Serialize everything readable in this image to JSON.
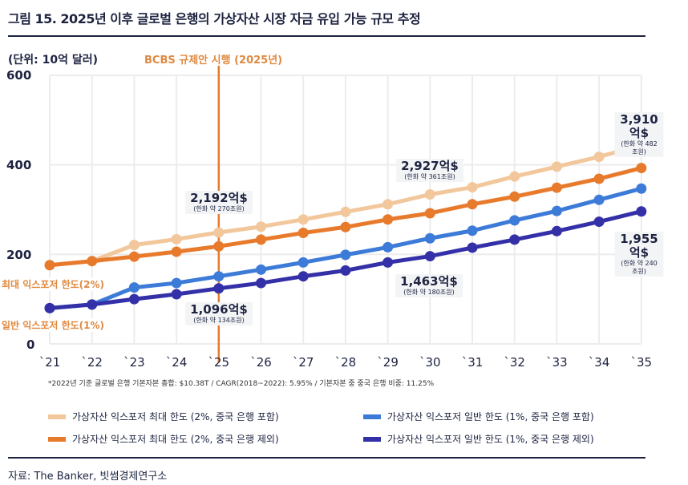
{
  "title": "그림 15. 2025년 이후 글로벌 은행의 가상자산 시장 자금 유입 가능 규모 추정",
  "source": "자료: The Banker, 빗썸경제연구소",
  "chart_data": {
    "type": "line",
    "unit_label": "(단위: 10억 달러)",
    "categories": [
      "`21",
      "`22",
      "`23",
      "`24",
      "`25",
      "`26",
      "`27",
      "`28",
      "`29",
      "`30",
      "`31",
      "`32",
      "`33",
      "`34",
      "`35"
    ],
    "yticks": [
      "0",
      "200",
      "400",
      "600"
    ],
    "ylim": [
      0,
      600
    ],
    "grid": true,
    "legend_position": "bottom",
    "series": [
      {
        "name": "가상자산 익스포저 최대 한도 (2%, 중국 은행 포함)",
        "color": "#f2c79b",
        "values": [
          176,
          185,
          221,
          234,
          249,
          262,
          278,
          295,
          312,
          334,
          350,
          374,
          396,
          418,
          444
        ]
      },
      {
        "name": "가상자산 익스포저 최대 한도 (2%, 중국 은행 제외)",
        "color": "#e87a2c",
        "values": [
          176,
          185,
          195,
          206,
          218,
          233,
          248,
          261,
          278,
          292,
          312,
          329,
          349,
          369,
          393
        ]
      },
      {
        "name": "가상자산 익스포저 일반 한도 (1%, 중국 은행 포함)",
        "color": "#3d7bd8",
        "values": [
          80,
          88,
          126,
          136,
          151,
          166,
          182,
          199,
          216,
          236,
          253,
          276,
          297,
          322,
          347
        ]
      },
      {
        "name": "가상자산 익스포저 일반 한도 (1%, 중국 은행 제외)",
        "color": "#3430a8",
        "values": [
          80,
          88,
          100,
          111,
          124,
          136,
          151,
          164,
          182,
          196,
          215,
          233,
          252,
          273,
          296
        ]
      }
    ],
    "marker_line": {
      "label": "BCBS 규제안 시행 (2025년)",
      "x": "`25",
      "color": "#e87a2c"
    },
    "side_labels": [
      "최대 익스포저 한도(2%)",
      "일반 익스포저 한도(1%)"
    ],
    "annotations": [
      {
        "value": "2,192억$",
        "krw": "(한화 약 270조원)"
      },
      {
        "value": "1,096억$",
        "krw": "(한화 약 134조원)"
      },
      {
        "value": "2,927억$",
        "krw": "(한화 약 361조원)"
      },
      {
        "value": "1,463억$",
        "krw": "(한화 약 180조원)"
      },
      {
        "value": "3,910억$",
        "krw": "(한화 약 482조원)"
      },
      {
        "value": "1,955억$",
        "krw": "(한화 약 240조원)"
      }
    ],
    "footnote": "*2022년 기준 글로벌 은행 기본자본 총합: $10.38T / CAGR(2018~2022): 5.95% / 기본자본 중 중국 은행 비중: 11.25%"
  }
}
